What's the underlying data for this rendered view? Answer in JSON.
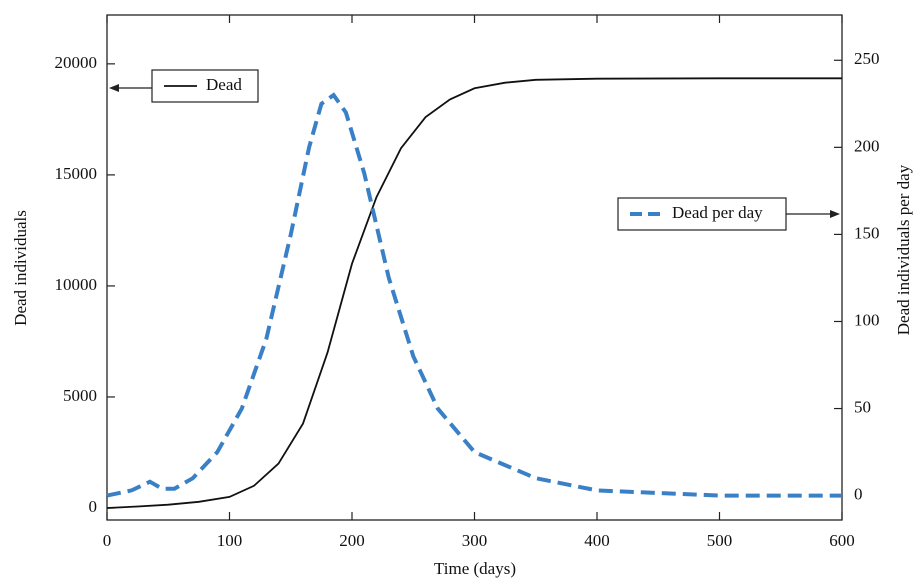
{
  "chart_data": {
    "type": "line",
    "x_label": "Time (days)",
    "y_label": "Dead individuals",
    "y2_label": "Dead individuals per day",
    "xlim": [
      0,
      600
    ],
    "xticks": [
      0,
      100,
      200,
      300,
      400,
      500,
      600
    ],
    "ylim": [
      -540,
      22200
    ],
    "yticks": [
      0,
      5000,
      10000,
      15000,
      20000
    ],
    "y2lim": [
      -14,
      276
    ],
    "y2ticks": [
      0,
      50,
      100,
      150,
      200,
      250
    ],
    "series": [
      {
        "name": "Dead",
        "color": "#111111",
        "dash": "solid",
        "axis": "y",
        "legend": "upper left",
        "x": [
          0,
          25,
          50,
          75,
          100,
          120,
          140,
          160,
          180,
          200,
          220,
          240,
          260,
          280,
          300,
          325,
          350,
          400,
          500,
          600
        ],
        "values": [
          0,
          70,
          150,
          280,
          500,
          1000,
          2000,
          3800,
          7000,
          11000,
          14000,
          16200,
          17600,
          18400,
          18900,
          19150,
          19280,
          19330,
          19350,
          19350
        ]
      },
      {
        "name": "Dead per day",
        "color": "#3a80c6",
        "dash": "dashed",
        "axis": "y2",
        "legend": "right",
        "x": [
          0,
          20,
          35,
          45,
          55,
          70,
          90,
          110,
          130,
          150,
          165,
          175,
          185,
          195,
          210,
          230,
          250,
          270,
          300,
          350,
          400,
          500,
          600
        ],
        "values": [
          0,
          3,
          8,
          4,
          4,
          10,
          25,
          50,
          90,
          150,
          200,
          225,
          230,
          220,
          185,
          125,
          80,
          50,
          25,
          10,
          3,
          0,
          0
        ]
      }
    ]
  }
}
